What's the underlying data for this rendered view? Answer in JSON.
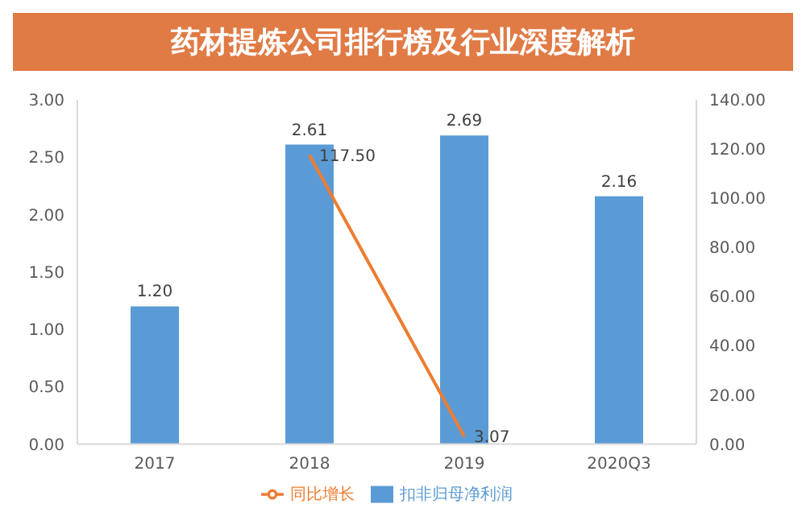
{
  "chart_data": {
    "type": "bar",
    "title": "药材提炼公司排行榜及行业深度解析",
    "categories": [
      "2017",
      "2018",
      "2019",
      "2020Q3"
    ],
    "series": [
      {
        "name": "扣非归母净利润",
        "color": "#5b9bd5",
        "values": [
          1.2,
          2.61,
          2.69,
          2.16
        ],
        "value_labels": [
          "1.20",
          "2.61",
          "2.69",
          "2.16"
        ]
      },
      {
        "name": "同比增长",
        "type": "line",
        "axis": "y2",
        "color": "#ed7d31",
        "values": [
          null,
          117.5,
          3.07,
          null
        ],
        "value_labels": [
          null,
          "117.50",
          "3.07",
          null
        ]
      }
    ],
    "ylim": [
      0,
      3
    ],
    "yticks": [
      {
        "value": 0,
        "label": "0.00"
      },
      {
        "value": 0.5,
        "label": "0.50"
      },
      {
        "value": 1,
        "label": "1.00"
      },
      {
        "value": 1.5,
        "label": "1.50"
      },
      {
        "value": 2,
        "label": "2.00"
      },
      {
        "value": 2.5,
        "label": "2.50"
      },
      {
        "value": 3,
        "label": "3.00"
      }
    ],
    "y2lim": [
      0,
      140
    ],
    "y2ticks": [
      {
        "value": 0,
        "label": "0.00"
      },
      {
        "value": 20,
        "label": "20.00"
      },
      {
        "value": 40,
        "label": "40.00"
      },
      {
        "value": 60,
        "label": "60.00"
      },
      {
        "value": 80,
        "label": "80.00"
      },
      {
        "value": 100,
        "label": "100.00"
      },
      {
        "value": 120,
        "label": "120.00"
      },
      {
        "value": 140,
        "label": "140.00"
      }
    ],
    "legend": "bottom"
  }
}
